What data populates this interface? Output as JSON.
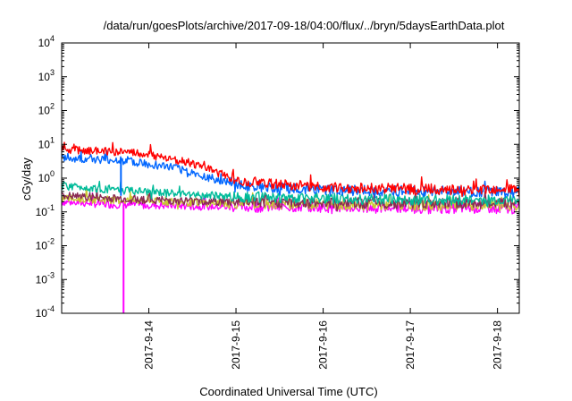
{
  "chart_data": {
    "type": "line",
    "title": "/data/run/goesPlots/archive/2017-09-18/04:00/flux/../bryn/5daysEarthData.plot",
    "xlabel": "Coordinated Universal Time (UTC)",
    "ylabel": "cGy/day",
    "yscale": "log",
    "ylim": [
      0.0001,
      10000
    ],
    "xlim": [
      13.0,
      18.25
    ],
    "y_ticks": [
      {
        "base": "10",
        "exp": "-4",
        "value": 0.0001
      },
      {
        "base": "10",
        "exp": "-3",
        "value": 0.001
      },
      {
        "base": "10",
        "exp": "-2",
        "value": 0.01
      },
      {
        "base": "10",
        "exp": "-1",
        "value": 0.1
      },
      {
        "base": "10",
        "exp": "0",
        "value": 1
      },
      {
        "base": "10",
        "exp": "1",
        "value": 10
      },
      {
        "base": "10",
        "exp": "2",
        "value": 100
      },
      {
        "base": "10",
        "exp": "3",
        "value": 1000
      },
      {
        "base": "10",
        "exp": "4",
        "value": 10000
      }
    ],
    "x_ticks": [
      {
        "label": "2017-9-14",
        "value": 14
      },
      {
        "label": "2017-9-15",
        "value": 15
      },
      {
        "label": "2017-9-16",
        "value": 16
      },
      {
        "label": "2017-9-17",
        "value": 17
      },
      {
        "label": "2017-9-18",
        "value": 18
      }
    ],
    "grid": false,
    "legend": "none",
    "series": [
      {
        "color": "#ff0000",
        "x": [
          13.0,
          13.7,
          14.0,
          14.3,
          14.6,
          14.9,
          15.2,
          15.6,
          16.0,
          16.5,
          17.0,
          17.5,
          18.0,
          18.25
        ],
        "y": [
          7.0,
          6.0,
          4.8,
          3.6,
          2.2,
          1.1,
          0.75,
          0.65,
          0.55,
          0.5,
          0.48,
          0.46,
          0.45,
          0.44
        ]
      },
      {
        "color": "#0066ff",
        "x": [
          13.0,
          13.7,
          14.0,
          14.3,
          14.6,
          14.9,
          15.2,
          15.6,
          16.0,
          16.5,
          17.0,
          17.5,
          18.0,
          18.25
        ],
        "y": [
          3.8,
          3.3,
          2.6,
          2.0,
          1.2,
          0.75,
          0.55,
          0.5,
          0.45,
          0.42,
          0.41,
          0.4,
          0.39,
          0.38
        ]
      },
      {
        "color": "#00bb99",
        "x": [
          13.0,
          13.5,
          14.0,
          14.5,
          15.0,
          15.5,
          16.0,
          16.5,
          17.0,
          17.5,
          18.0,
          18.25
        ],
        "y": [
          0.6,
          0.48,
          0.38,
          0.32,
          0.28,
          0.26,
          0.25,
          0.24,
          0.23,
          0.23,
          0.22,
          0.22
        ]
      },
      {
        "color": "#8a2a55",
        "x": [
          13.0,
          13.5,
          14.0,
          14.5,
          15.0,
          15.5,
          16.0,
          16.5,
          17.0,
          17.5,
          18.0,
          18.25
        ],
        "y": [
          0.3,
          0.26,
          0.23,
          0.21,
          0.2,
          0.19,
          0.19,
          0.18,
          0.18,
          0.18,
          0.18,
          0.18
        ]
      },
      {
        "color": "#c8c830",
        "x": [
          13.0,
          13.5,
          14.0,
          14.5,
          15.0,
          15.5,
          16.0,
          16.5,
          17.0,
          17.5,
          18.0,
          18.25
        ],
        "y": [
          0.26,
          0.23,
          0.21,
          0.19,
          0.18,
          0.17,
          0.17,
          0.16,
          0.16,
          0.16,
          0.16,
          0.16
        ]
      },
      {
        "color": "#ff00ff",
        "x": [
          13.0,
          13.5,
          14.0,
          14.5,
          15.0,
          15.5,
          16.0,
          16.5,
          17.0,
          17.5,
          18.0,
          18.25
        ],
        "y": [
          0.2,
          0.17,
          0.16,
          0.15,
          0.14,
          0.14,
          0.14,
          0.13,
          0.13,
          0.13,
          0.13,
          0.12
        ]
      }
    ],
    "dropouts": [
      {
        "color": "#0066ff",
        "x": 13.68,
        "y_low": 0.3
      },
      {
        "color": "#ff00ff",
        "x": 13.71,
        "y_low": 0.0001
      }
    ]
  }
}
